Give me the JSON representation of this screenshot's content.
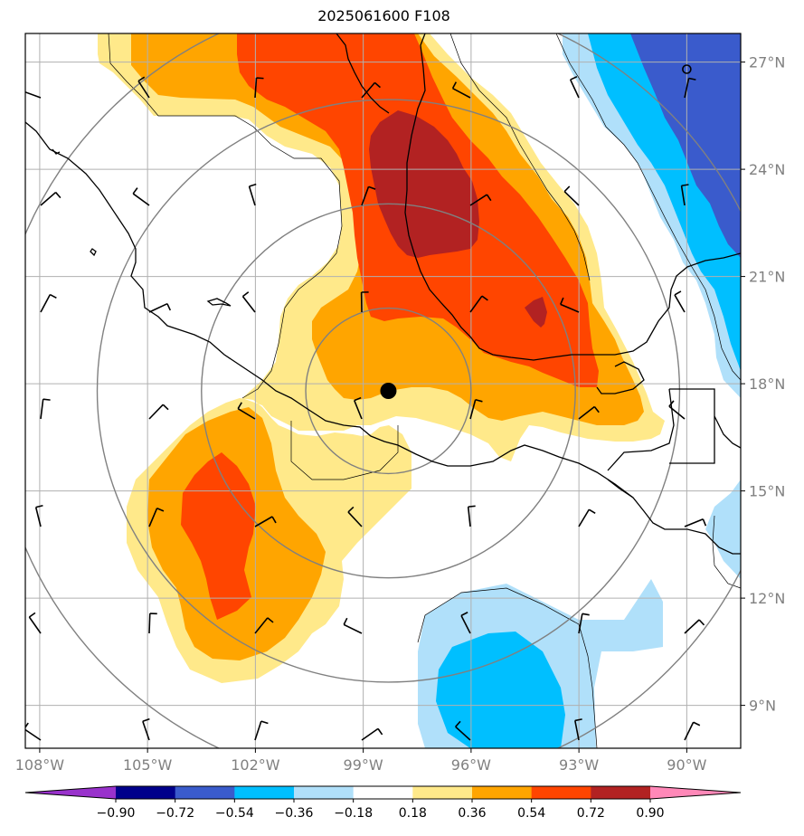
{
  "title": "2025061600 F108",
  "map": {
    "lon_min": -108.4,
    "lon_max": -88.5,
    "lat_min": 7.8,
    "lat_max": 27.8,
    "lon_ticks": [
      {
        "value": -108,
        "label": "108°W"
      },
      {
        "value": -105,
        "label": "105°W"
      },
      {
        "value": -102,
        "label": "102°W"
      },
      {
        "value": -99,
        "label": "99°W"
      },
      {
        "value": -96,
        "label": "96°W"
      },
      {
        "value": -93,
        "label": "93°W"
      },
      {
        "value": -90,
        "label": "90°W"
      }
    ],
    "lat_ticks": [
      {
        "value": 27,
        "label": "27°N"
      },
      {
        "value": 24,
        "label": "24°N"
      },
      {
        "value": 21,
        "label": "21°N"
      },
      {
        "value": 18,
        "label": "18°N"
      },
      {
        "value": 15,
        "label": "15°N"
      },
      {
        "value": 12,
        "label": "12°N"
      },
      {
        "value": 9,
        "label": "9°N"
      }
    ],
    "center_marker": {
      "lon": -98.3,
      "lat": 17.8
    },
    "open_marker": {
      "lon": -90.0,
      "lat": 26.8
    },
    "range_rings_deg": [
      2.3,
      5.2,
      8.1,
      11.0
    ]
  },
  "colorbar": {
    "labels": [
      "−0.90",
      "−0.72",
      "−0.54",
      "−0.36",
      "−0.18",
      "0.18",
      "0.36",
      "0.54",
      "0.72",
      "0.90"
    ],
    "colors": [
      "#9932cc",
      "#00008b",
      "#3a5bcc",
      "#00bfff",
      "#b0e0fa",
      "#ffffff",
      "#ffe98a",
      "#ffa500",
      "#ff4500",
      "#b22222",
      "#ff88b8"
    ]
  },
  "colors": {
    "grid": "#b0b0b0",
    "coast": "#000000",
    "rings": "#808080",
    "tick_label": "#808080"
  }
}
